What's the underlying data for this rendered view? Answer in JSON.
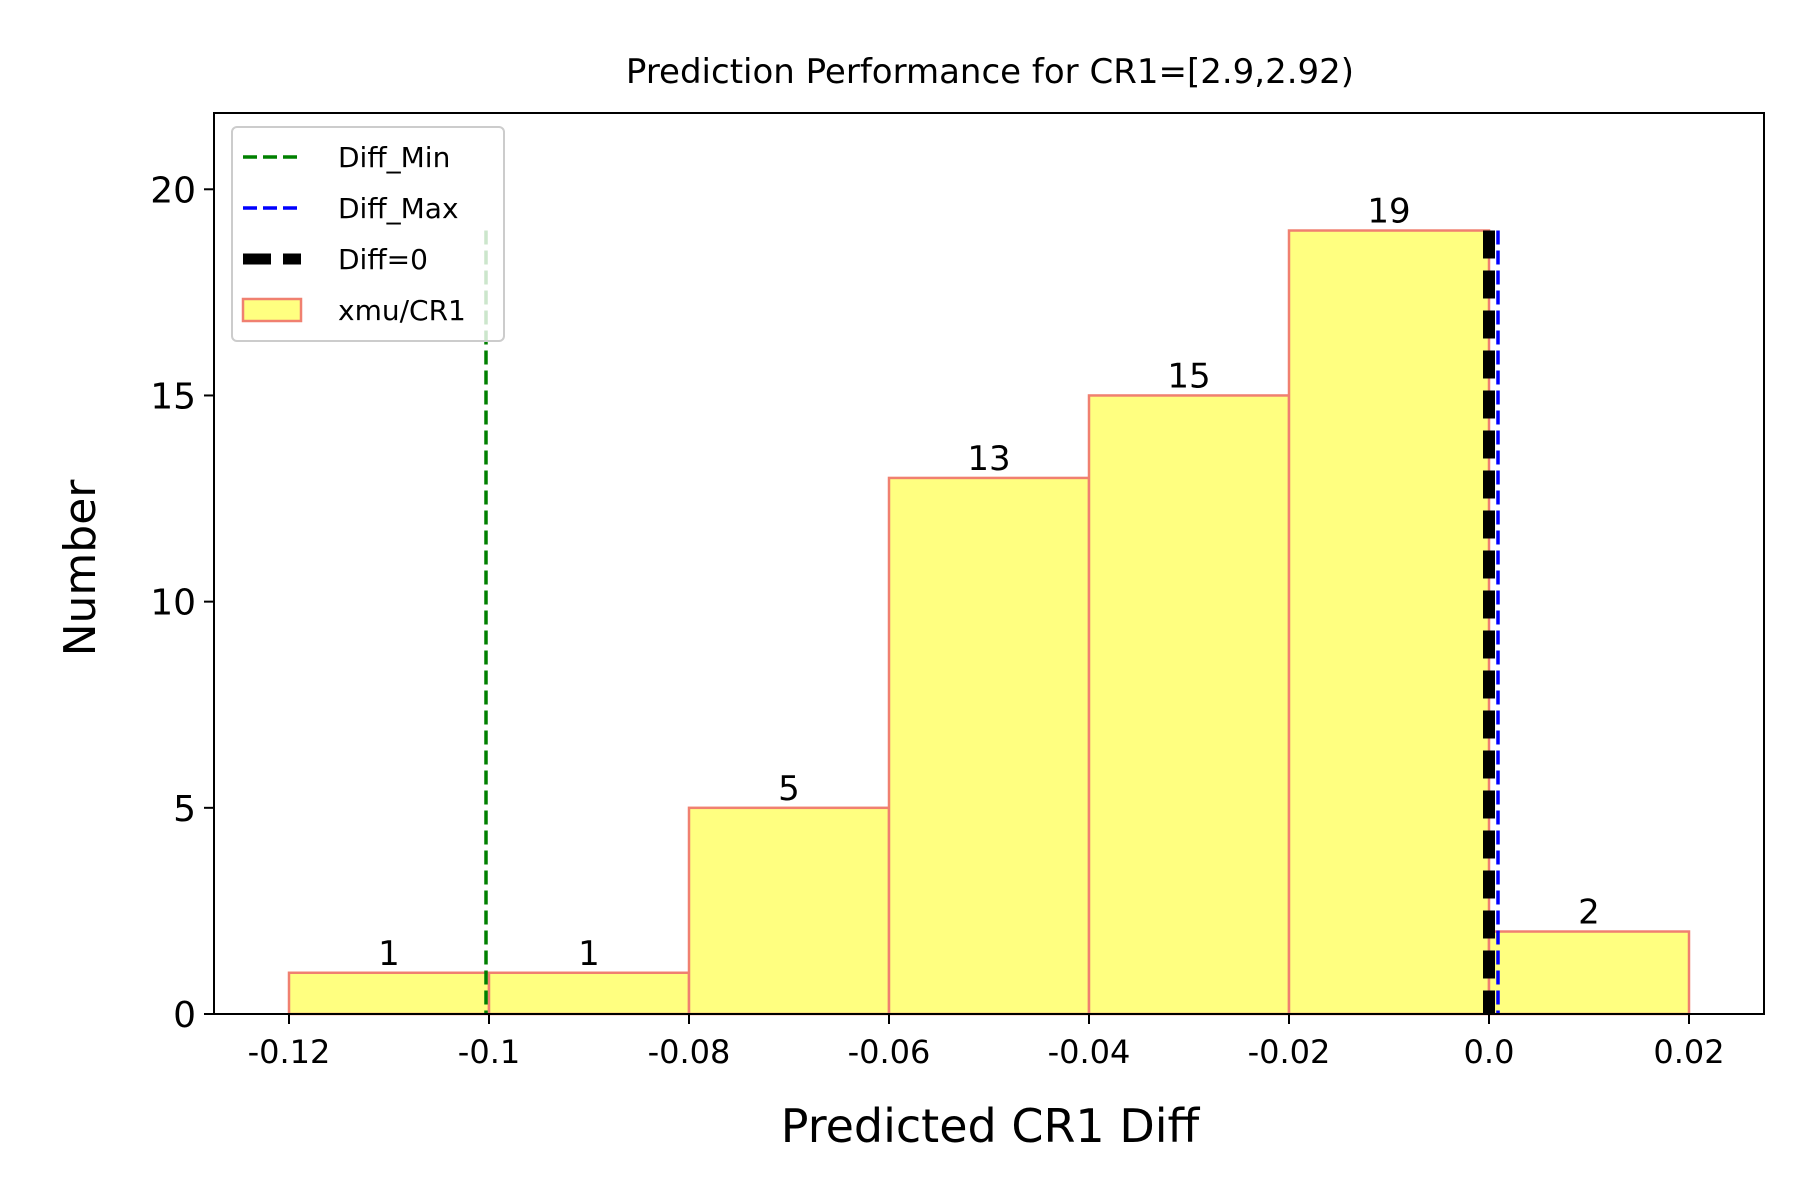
{
  "chart_data": {
    "type": "bar",
    "title": "Prediction Performance for CR1=[2.9,2.92)",
    "xlabel": "Predicted CR1 Diff",
    "ylabel": "Number",
    "xlim": [
      -0.1275,
      0.0275
    ],
    "ylim": [
      0,
      21.85
    ],
    "x_ticks": [
      -0.12,
      -0.1,
      -0.08,
      -0.06,
      -0.04,
      -0.02,
      0.0,
      0.02
    ],
    "x_tick_labels": [
      "-0.12",
      "-0.1",
      "-0.08",
      "-0.06",
      "-0.04",
      "-0.02",
      "0.0",
      "0.02"
    ],
    "y_ticks": [
      0,
      5,
      10,
      15,
      20
    ],
    "y_tick_labels": [
      "0",
      "5",
      "10",
      "15",
      "20"
    ],
    "bins": [
      {
        "x0": -0.12,
        "x1": -0.1,
        "value": 1,
        "label": "1"
      },
      {
        "x0": -0.1,
        "x1": -0.08,
        "value": 1,
        "label": "1"
      },
      {
        "x0": -0.08,
        "x1": -0.06,
        "value": 5,
        "label": "5"
      },
      {
        "x0": -0.06,
        "x1": -0.04,
        "value": 13,
        "label": "13"
      },
      {
        "x0": -0.04,
        "x1": -0.02,
        "value": 15,
        "label": "15"
      },
      {
        "x0": -0.02,
        "x1": 0.0,
        "value": 19,
        "label": "19"
      },
      {
        "x0": 0.0,
        "x1": 0.02,
        "value": 2,
        "label": "2"
      }
    ],
    "vlines": [
      {
        "name": "Diff_Min",
        "x": -0.1003,
        "y_top": 19,
        "color": "#008000",
        "style": "dashed"
      },
      {
        "name": "Diff_Max",
        "x": 0.0009,
        "y_top": 19,
        "color": "#0000ff",
        "style": "dashed"
      },
      {
        "name": "Diff=0",
        "x": 0.0,
        "y_top": 19,
        "color": "#000000",
        "style": "thick-dashed"
      }
    ],
    "series": [
      {
        "name": "xmu/CR1",
        "fill": "#ffff80",
        "edge": "#f08070"
      }
    ],
    "legend": {
      "placement": "top-left",
      "entries": [
        {
          "label": "Diff_Min",
          "kind": "line",
          "color": "#008000"
        },
        {
          "label": "Diff_Max",
          "kind": "line",
          "color": "#0000ff"
        },
        {
          "label": "Diff=0",
          "kind": "thick-line",
          "color": "#000000"
        },
        {
          "label": "xmu/CR1",
          "kind": "patch",
          "fill": "#ffff80",
          "edge": "#f08070"
        }
      ]
    },
    "grid": false
  }
}
